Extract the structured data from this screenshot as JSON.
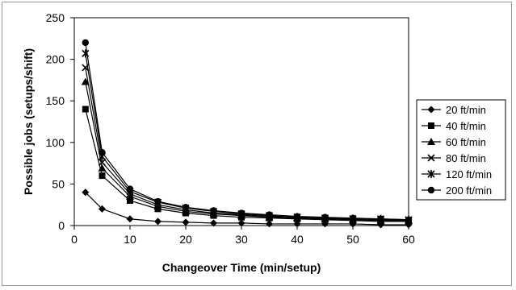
{
  "chart_data": {
    "type": "line",
    "title": "",
    "xlabel": "Changeover Time (min/setup)",
    "ylabel": "Possible jobs (setups/shift)",
    "xlim": [
      0,
      60
    ],
    "ylim": [
      0,
      250
    ],
    "xticks": [
      0,
      10,
      20,
      30,
      40,
      50,
      60
    ],
    "yticks": [
      0,
      50,
      100,
      150,
      200,
      250
    ],
    "grid": false,
    "legend_position": "right",
    "x": [
      2,
      5,
      10,
      15,
      20,
      25,
      30,
      35,
      40,
      45,
      50,
      55,
      60
    ],
    "series": [
      {
        "name": "20 ft/min",
        "marker": "diamond",
        "values": [
          40,
          20,
          8,
          5,
          4,
          3,
          3,
          2,
          2,
          2,
          2,
          1,
          1
        ]
      },
      {
        "name": "40 ft/min",
        "marker": "square",
        "values": [
          140,
          60,
          30,
          20,
          15,
          12,
          10,
          9,
          8,
          7,
          6,
          5,
          5
        ]
      },
      {
        "name": "60 ft/min",
        "marker": "triangle",
        "values": [
          173,
          69,
          35,
          23,
          17,
          14,
          12,
          10,
          9,
          8,
          7,
          6,
          6
        ]
      },
      {
        "name": "80 ft/min",
        "marker": "x",
        "values": [
          190,
          76,
          38,
          25,
          19,
          15,
          13,
          11,
          10,
          8,
          8,
          7,
          6
        ]
      },
      {
        "name": "120 ft/min",
        "marker": "star",
        "values": [
          207,
          83,
          41,
          28,
          21,
          17,
          14,
          12,
          10,
          9,
          8,
          8,
          7
        ]
      },
      {
        "name": "200 ft/min",
        "marker": "circle",
        "values": [
          220,
          88,
          44,
          29,
          22,
          18,
          15,
          13,
          11,
          10,
          9,
          8,
          7
        ]
      }
    ]
  }
}
